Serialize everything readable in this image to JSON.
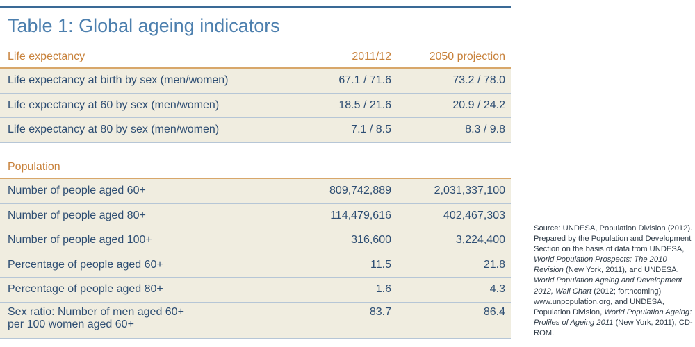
{
  "title": "Table 1: Global ageing indicators",
  "life_expectancy": {
    "header": "Life expectancy",
    "col1": "2011/12",
    "col2": "2050 projection",
    "rows": [
      {
        "label": "Life expectancy at birth by sex (men/women)",
        "v1": "67.1 / 71.6",
        "v2": "73.2 / 78.0"
      },
      {
        "label": "Life expectancy at 60 by sex (men/women)",
        "v1": "18.5 / 21.6",
        "v2": "20.9 / 24.2"
      },
      {
        "label": "Life expectancy at 80 by sex (men/women)",
        "v1": "7.1 / 8.5",
        "v2": "8.3 / 9.8"
      }
    ]
  },
  "population": {
    "header": "Population",
    "rows": [
      {
        "label": "Number of people aged 60+",
        "v1": "809,742,889",
        "v2": "2,031,337,100"
      },
      {
        "label": "Number of people aged 80+",
        "v1": "114,479,616",
        "v2": "402,467,303"
      },
      {
        "label": "Number of people aged 100+",
        "v1": "316,600",
        "v2": "3,224,400"
      },
      {
        "label": "Percentage of people aged 60+",
        "v1": "11.5",
        "v2": "21.8"
      },
      {
        "label": "Percentage of people aged 80+",
        "v1": "1.6",
        "v2": "4.3"
      }
    ],
    "last_row": {
      "label_line1": "Sex ratio: Number of men aged 60+",
      "label_line2": "per 100 women aged 60+",
      "v1": "83.7",
      "v2": "86.4"
    }
  },
  "source": {
    "p1": "Source: UNDESA, Population Division (2012). Prepared by the Population and Development Section on the basis of data from UNDESA, ",
    "i1": "World Population Prospects: The 2010 Revision",
    "p2": " (New York, 2011), and UNDESA, ",
    "i2": "World Population Ageing and Development 2012, Wall Chart",
    "p3": " (2012; forthcoming) www.unpopulation.org, and UNDESA, Population Division, ",
    "i3": "World Population Ageing: Profiles of Ageing 2011",
    "p4": " (New York, 2011), CD-ROM."
  },
  "colors": {
    "title": "#4c7fae",
    "section_header": "#c8823c",
    "row_background": "#f0ede0",
    "body_text": "#2e4e73"
  }
}
